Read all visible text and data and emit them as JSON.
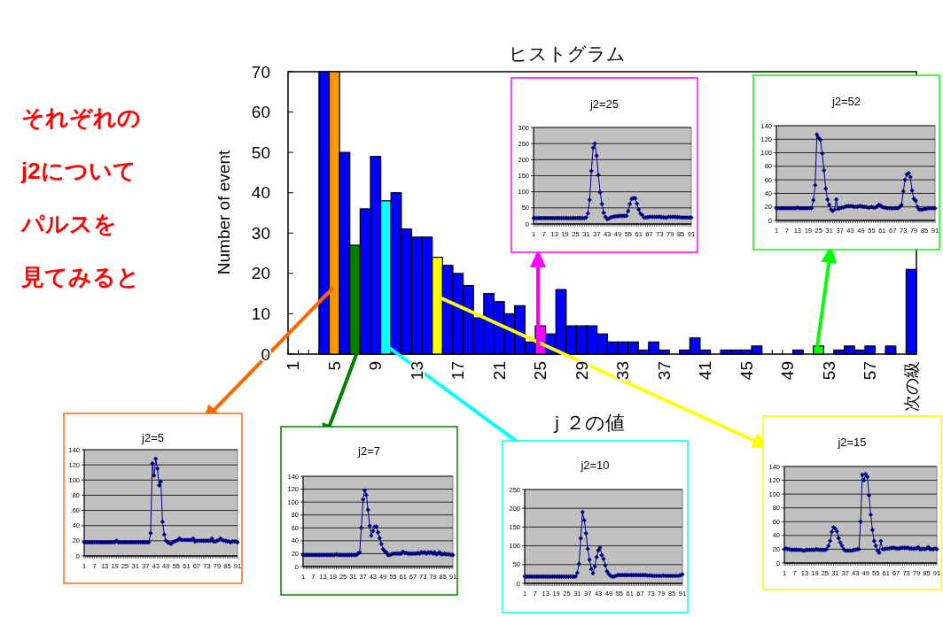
{
  "chart_data": [
    {
      "type": "bar",
      "title": "ヒストグラム",
      "xlabel": "ｊ２の値",
      "ylabel": "Number of event",
      "categories": [
        "1",
        null,
        null,
        null,
        "5",
        null,
        null,
        null,
        "9",
        null,
        null,
        null,
        "13",
        null,
        null,
        null,
        "17",
        null,
        null,
        null,
        "21",
        null,
        null,
        null,
        "25",
        null,
        null,
        null,
        "29",
        null,
        null,
        null,
        "33",
        null,
        null,
        null,
        "37",
        null,
        null,
        null,
        "41",
        null,
        null,
        null,
        "45",
        null,
        null,
        null,
        "49",
        null,
        null,
        null,
        "53",
        null,
        null,
        null,
        "57",
        null,
        null,
        null,
        "次の級"
      ],
      "values": [
        0,
        0,
        0,
        70,
        70,
        50,
        27,
        36,
        49,
        38,
        40,
        31,
        29,
        29,
        24,
        22,
        20,
        17,
        9,
        15,
        13,
        10,
        12,
        3,
        7,
        5,
        16,
        7,
        7,
        7,
        5,
        3,
        3,
        3,
        1,
        3,
        1,
        0,
        1,
        4,
        1,
        0,
        1,
        1,
        1,
        2,
        0,
        0,
        0,
        1,
        0,
        2,
        0,
        1,
        2,
        1,
        2,
        0,
        2,
        0,
        21
      ],
      "colors": [
        "#0000ff",
        "#0000ff",
        "#0000ff",
        "#0000ff",
        "#ff9900",
        "#0000ff",
        "#008000",
        "#0000ff",
        "#0000ff",
        "#00ffff",
        "#0000ff",
        "#0000ff",
        "#0000ff",
        "#0000ff",
        "#ffff00",
        "#0000ff",
        "#0000ff",
        "#0000ff",
        "#0000ff",
        "#0000ff",
        "#0000ff",
        "#0000ff",
        "#0000ff",
        "#0000ff",
        "#ff00ff",
        "#0000ff",
        "#0000ff",
        "#0000ff",
        "#0000ff",
        "#0000ff",
        "#0000ff",
        "#0000ff",
        "#0000ff",
        "#0000ff",
        "#0000ff",
        "#0000ff",
        "#0000ff",
        "#0000ff",
        "#0000ff",
        "#0000ff",
        "#0000ff",
        "#0000ff",
        "#0000ff",
        "#0000ff",
        "#0000ff",
        "#0000ff",
        "#0000ff",
        "#0000ff",
        "#0000ff",
        "#0000ff",
        "#0000ff",
        "#00ff00",
        "#0000ff",
        "#0000ff",
        "#0000ff",
        "#0000ff",
        "#0000ff",
        "#0000ff",
        "#0000ff",
        "#0000ff",
        "#0000ff"
      ],
      "ylim": [
        0,
        70
      ],
      "yticks": [
        0,
        10,
        20,
        30,
        40,
        50,
        60,
        70
      ],
      "annotations": [
        "それぞれの",
        "j2について",
        "パルスを",
        "見てみると"
      ]
    },
    {
      "type": "line",
      "title": "j2=5",
      "color": "#000080",
      "marker": "diamond",
      "grid": "y",
      "ylim": [
        0,
        140
      ],
      "yticks": [
        0,
        20,
        40,
        60,
        80,
        100,
        120,
        140
      ],
      "categories": [
        "1",
        null,
        null,
        null,
        null,
        null,
        "7",
        null,
        null,
        null,
        null,
        null,
        "13",
        null,
        null,
        null,
        null,
        null,
        "19",
        null,
        null,
        null,
        null,
        null,
        "25",
        null,
        null,
        null,
        null,
        null,
        "31",
        null,
        null,
        null,
        null,
        null,
        "37",
        null,
        null,
        null,
        null,
        null,
        "43",
        null,
        null,
        null,
        null,
        null,
        "49",
        null,
        null,
        null,
        null,
        null,
        "55",
        null,
        null,
        null,
        null,
        null,
        "61",
        null,
        null,
        null,
        null,
        null,
        "67",
        null,
        null,
        null,
        null,
        null,
        "73",
        null,
        null,
        null,
        null,
        null,
        "79",
        null,
        null,
        null,
        null,
        null,
        "85",
        null,
        null,
        null,
        null,
        null,
        "91"
      ],
      "values": [
        18,
        18,
        18,
        18,
        18,
        18,
        18,
        18,
        18,
        18,
        18,
        18,
        18,
        18,
        18,
        18,
        18,
        18,
        18,
        20,
        18,
        18,
        18,
        18,
        18,
        18,
        18,
        18,
        18,
        18,
        18,
        18,
        18,
        18,
        18,
        18,
        18,
        18,
        18,
        30,
        122,
        106,
        128,
        115,
        93,
        98,
        45,
        28,
        20,
        18,
        17,
        16,
        18,
        19,
        20,
        21,
        23,
        21,
        21,
        21,
        21,
        21,
        21,
        21,
        23,
        19,
        20,
        20,
        20,
        20,
        20,
        20,
        20,
        20,
        20,
        23,
        19,
        19,
        20,
        21,
        23,
        21,
        20,
        20,
        19,
        19,
        18,
        19,
        19,
        19,
        18
      ]
    },
    {
      "type": "line",
      "title": "j2=7",
      "color": "#000080",
      "marker": "diamond",
      "grid": "y",
      "ylim": [
        0,
        140
      ],
      "yticks": [
        0,
        20,
        40,
        60,
        80,
        100,
        120,
        140
      ],
      "categories": [
        "1",
        null,
        null,
        null,
        null,
        null,
        "7",
        null,
        null,
        null,
        null,
        null,
        "13",
        null,
        null,
        null,
        null,
        null,
        "19",
        null,
        null,
        null,
        null,
        null,
        "25",
        null,
        null,
        null,
        null,
        null,
        "31",
        null,
        null,
        null,
        null,
        null,
        "37",
        null,
        null,
        null,
        null,
        null,
        "43",
        null,
        null,
        null,
        null,
        null,
        "49",
        null,
        null,
        null,
        null,
        null,
        "55",
        null,
        null,
        null,
        null,
        null,
        "61",
        null,
        null,
        null,
        null,
        null,
        "67",
        null,
        null,
        null,
        null,
        null,
        "73",
        null,
        null,
        null,
        null,
        null,
        "79",
        null,
        null,
        null,
        null,
        null,
        "85",
        null,
        null,
        null,
        null,
        null,
        "91"
      ],
      "values": [
        18,
        18,
        18,
        18,
        18,
        18,
        18,
        18,
        18,
        18,
        18,
        18,
        18,
        18,
        18,
        18,
        18,
        18,
        18,
        18,
        19,
        18,
        18,
        18,
        18,
        18,
        18,
        18,
        18,
        18,
        18,
        18,
        18,
        20,
        22,
        60,
        104,
        118,
        111,
        88,
        63,
        48,
        55,
        62,
        62,
        53,
        44,
        35,
        27,
        24,
        22,
        18,
        18,
        19,
        20,
        20,
        20,
        20,
        20,
        20,
        23,
        21,
        21,
        20,
        20,
        20,
        20,
        20,
        20,
        21,
        20,
        22,
        21,
        22,
        20,
        22,
        21,
        22,
        20,
        22,
        19,
        20,
        22,
        19,
        19,
        20,
        19,
        19,
        19,
        18,
        18
      ]
    },
    {
      "type": "line",
      "title": "j2=10",
      "color": "#000080",
      "marker": "diamond",
      "grid": "y",
      "ylim": [
        0,
        250
      ],
      "yticks": [
        0,
        50,
        100,
        150,
        200,
        250
      ],
      "categories": [
        "1",
        null,
        null,
        null,
        null,
        null,
        "7",
        null,
        null,
        null,
        null,
        null,
        "13",
        null,
        null,
        null,
        null,
        null,
        "19",
        null,
        null,
        null,
        null,
        null,
        "25",
        null,
        null,
        null,
        null,
        null,
        "31",
        null,
        null,
        null,
        null,
        null,
        "37",
        null,
        null,
        null,
        null,
        null,
        "43",
        null,
        null,
        null,
        null,
        null,
        "49",
        null,
        null,
        null,
        null,
        null,
        "55",
        null,
        null,
        null,
        null,
        null,
        "61",
        null,
        null,
        null,
        null,
        null,
        "67",
        null,
        null,
        null,
        null,
        null,
        "73",
        null,
        null,
        null,
        null,
        null,
        "79",
        null,
        null,
        null,
        null,
        null,
        "85",
        null,
        null,
        null,
        null,
        null,
        "91"
      ],
      "values": [
        18,
        18,
        18,
        18,
        18,
        18,
        18,
        18,
        18,
        18,
        18,
        18,
        18,
        18,
        18,
        18,
        18,
        18,
        18,
        18,
        18,
        18,
        18,
        18,
        18,
        18,
        18,
        18,
        18,
        18,
        28,
        52,
        120,
        190,
        168,
        133,
        92,
        63,
        38,
        27,
        45,
        70,
        88,
        95,
        75,
        65,
        48,
        32,
        25,
        20,
        18,
        18,
        20,
        22,
        22,
        22,
        22,
        22,
        22,
        22,
        22,
        22,
        22,
        22,
        22,
        22,
        22,
        22,
        22,
        22,
        21,
        21,
        21,
        20,
        20,
        20,
        20,
        20,
        20,
        21,
        20,
        20,
        20,
        20,
        20,
        20,
        20,
        20,
        20,
        22,
        24
      ]
    },
    {
      "type": "line",
      "title": "j2=15",
      "color": "#000080",
      "marker": "diamond",
      "grid": "y",
      "ylim": [
        0,
        140
      ],
      "yticks": [
        0,
        20,
        40,
        60,
        80,
        100,
        120,
        140
      ],
      "categories": [
        "1",
        null,
        null,
        null,
        null,
        null,
        "7",
        null,
        null,
        null,
        null,
        null,
        "13",
        null,
        null,
        null,
        null,
        null,
        "19",
        null,
        null,
        null,
        null,
        null,
        "25",
        null,
        null,
        null,
        null,
        null,
        "31",
        null,
        null,
        null,
        null,
        null,
        "37",
        null,
        null,
        null,
        null,
        null,
        "43",
        null,
        null,
        null,
        null,
        null,
        "49",
        null,
        null,
        null,
        null,
        null,
        "55",
        null,
        null,
        null,
        null,
        null,
        "61",
        null,
        null,
        null,
        null,
        null,
        "67",
        null,
        null,
        null,
        null,
        null,
        "73",
        null,
        null,
        null,
        null,
        null,
        "79",
        null,
        null,
        null,
        null,
        null,
        "85",
        null,
        null,
        null,
        null,
        null,
        "91"
      ],
      "values": [
        20,
        21,
        20,
        20,
        19,
        19,
        19,
        19,
        19,
        19,
        19,
        18,
        18,
        19,
        19,
        19,
        19,
        19,
        19,
        20,
        19,
        19,
        19,
        19,
        19,
        20,
        25,
        32,
        45,
        52,
        50,
        46,
        36,
        30,
        25,
        20,
        18,
        18,
        18,
        18,
        18,
        19,
        19,
        20,
        20,
        60,
        128,
        120,
        129,
        125,
        98,
        70,
        48,
        32,
        25,
        18,
        15,
        32,
        20,
        20,
        21,
        21,
        21,
        22,
        22,
        22,
        21,
        21,
        21,
        22,
        22,
        22,
        22,
        22,
        21,
        21,
        21,
        21,
        21,
        23,
        20,
        20,
        21,
        20,
        21,
        23,
        20,
        20,
        20,
        21,
        20
      ]
    },
    {
      "type": "line",
      "title": "j2=25",
      "color": "#000080",
      "marker": "diamond",
      "grid": "y",
      "ylim": [
        0,
        300
      ],
      "yticks": [
        0,
        50,
        100,
        150,
        200,
        250,
        300
      ],
      "categories": [
        "1",
        null,
        null,
        null,
        null,
        null,
        "7",
        null,
        null,
        null,
        null,
        null,
        "13",
        null,
        null,
        null,
        null,
        null,
        "19",
        null,
        null,
        null,
        null,
        null,
        "25",
        null,
        null,
        null,
        null,
        null,
        "31",
        null,
        null,
        null,
        null,
        null,
        "37",
        null,
        null,
        null,
        null,
        null,
        "43",
        null,
        null,
        null,
        null,
        null,
        "49",
        null,
        null,
        null,
        null,
        null,
        "55",
        null,
        null,
        null,
        null,
        null,
        "61",
        null,
        null,
        null,
        null,
        null,
        "67",
        null,
        null,
        null,
        null,
        null,
        "73",
        null,
        null,
        null,
        null,
        null,
        "79",
        null,
        null,
        null,
        null,
        null,
        "85",
        null,
        null,
        null,
        null,
        null,
        "91"
      ],
      "values": [
        18,
        18,
        18,
        18,
        18,
        18,
        18,
        18,
        18,
        18,
        18,
        18,
        18,
        18,
        18,
        18,
        18,
        18,
        18,
        18,
        18,
        18,
        18,
        18,
        18,
        18,
        18,
        18,
        18,
        18,
        20,
        33,
        75,
        165,
        237,
        250,
        212,
        152,
        98,
        62,
        35,
        22,
        15,
        17,
        20,
        22,
        23,
        24,
        24,
        25,
        25,
        25,
        25,
        25,
        40,
        62,
        78,
        80,
        80,
        63,
        45,
        32,
        28,
        20,
        20,
        21,
        22,
        22,
        22,
        22,
        22,
        22,
        22,
        21,
        21,
        20,
        20,
        22,
        22,
        22,
        22,
        22,
        21,
        21,
        20,
        20,
        20,
        20,
        20,
        20,
        20
      ]
    },
    {
      "type": "line",
      "title": "j2=52",
      "color": "#000080",
      "marker": "diamond",
      "grid": "y",
      "ylim": [
        0,
        140
      ],
      "yticks": [
        0,
        20,
        40,
        60,
        80,
        100,
        120,
        140
      ],
      "categories": [
        "1",
        null,
        null,
        null,
        null,
        null,
        "7",
        null,
        null,
        null,
        null,
        null,
        "13",
        null,
        null,
        null,
        null,
        null,
        "19",
        null,
        null,
        null,
        null,
        null,
        "25",
        null,
        null,
        null,
        null,
        null,
        "31",
        null,
        null,
        null,
        null,
        null,
        "37",
        null,
        null,
        null,
        null,
        null,
        "43",
        null,
        null,
        null,
        null,
        null,
        "49",
        null,
        null,
        null,
        null,
        null,
        "55",
        null,
        null,
        null,
        null,
        null,
        "61",
        null,
        null,
        null,
        null,
        null,
        "67",
        null,
        null,
        null,
        null,
        null,
        "73",
        null,
        null,
        null,
        null,
        null,
        "79",
        null,
        null,
        null,
        null,
        null,
        "85",
        null,
        null,
        null,
        null,
        null,
        "91"
      ],
      "values": [
        18,
        18,
        18,
        18,
        18,
        18,
        18,
        18,
        18,
        18,
        18,
        18,
        19,
        18,
        18,
        18,
        18,
        18,
        18,
        18,
        18,
        30,
        52,
        127,
        122,
        119,
        99,
        74,
        47,
        31,
        23,
        16,
        14,
        16,
        31,
        17,
        18,
        19,
        19,
        20,
        21,
        21,
        21,
        21,
        20,
        20,
        20,
        21,
        21,
        20,
        20,
        20,
        19,
        19,
        20,
        19,
        19,
        20,
        23,
        22,
        20,
        19,
        19,
        18,
        18,
        18,
        18,
        18,
        18,
        18,
        20,
        23,
        43,
        60,
        68,
        70,
        64,
        44,
        32,
        29,
        20,
        16,
        16,
        16,
        17,
        17,
        18,
        18,
        18,
        18,
        18
      ]
    }
  ]
}
